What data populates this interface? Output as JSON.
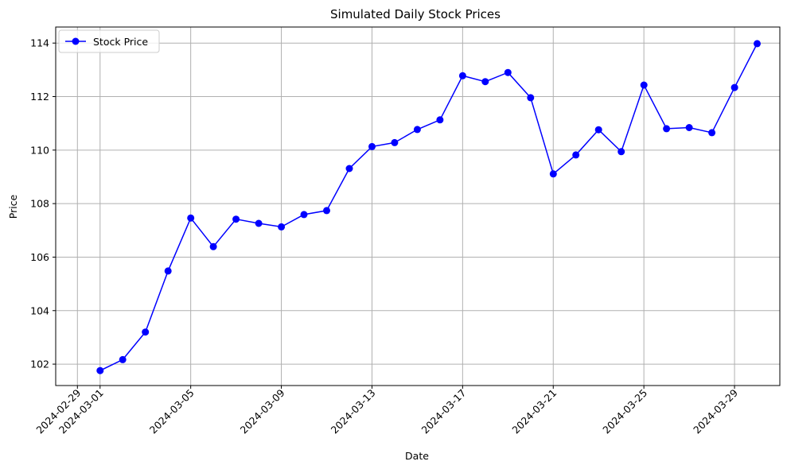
{
  "chart_data": {
    "type": "line",
    "title": "Simulated Daily Stock Prices",
    "xlabel": "Date",
    "ylabel": "Price",
    "grid": true,
    "legend_position": "top-left",
    "xlim": [
      "2024-02-28T01:00",
      "2024-03-31T00:00"
    ],
    "ylim": [
      101.2,
      114.6
    ],
    "x_ticks": [
      "2024-02-29",
      "2024-03-01",
      "2024-03-05",
      "2024-03-09",
      "2024-03-13",
      "2024-03-17",
      "2024-03-21",
      "2024-03-25",
      "2024-03-29"
    ],
    "y_ticks": [
      102,
      104,
      106,
      108,
      110,
      112,
      114
    ],
    "series": [
      {
        "name": "Stock Price",
        "color": "#0000ff",
        "marker": "circle",
        "x": [
          "2024-03-01",
          "2024-03-02",
          "2024-03-03",
          "2024-03-04",
          "2024-03-05",
          "2024-03-06",
          "2024-03-07",
          "2024-03-08",
          "2024-03-09",
          "2024-03-10",
          "2024-03-11",
          "2024-03-12",
          "2024-03-13",
          "2024-03-14",
          "2024-03-15",
          "2024-03-16",
          "2024-03-17",
          "2024-03-18",
          "2024-03-19",
          "2024-03-20",
          "2024-03-21",
          "2024-03-22",
          "2024-03-23",
          "2024-03-24",
          "2024-03-25",
          "2024-03-26",
          "2024-03-27",
          "2024-03-28",
          "2024-03-29",
          "2024-03-30"
        ],
        "values": [
          101.76,
          102.17,
          103.2,
          105.48,
          107.46,
          106.39,
          107.42,
          107.26,
          107.13,
          107.59,
          107.74,
          109.31,
          110.13,
          110.28,
          110.77,
          111.13,
          112.78,
          112.56,
          112.9,
          111.96,
          109.11,
          109.82,
          110.76,
          109.94,
          112.43,
          110.8,
          110.84,
          110.65,
          112.34,
          113.98
        ]
      }
    ]
  }
}
